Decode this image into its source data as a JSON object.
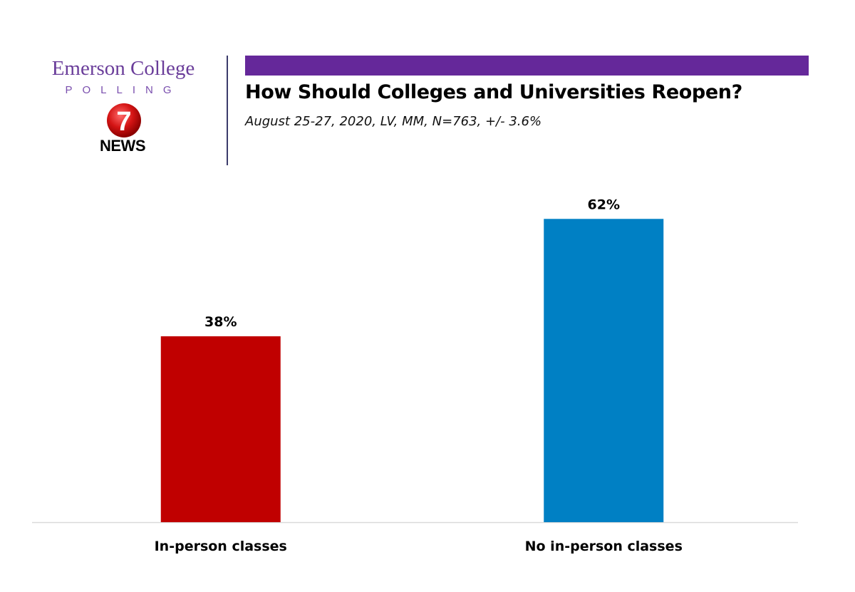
{
  "brand": {
    "college": "Emerson College",
    "polling": "POLLING",
    "news_number": "7",
    "news_word": "NEWS"
  },
  "colors": {
    "accent": "#65289a",
    "in_person": "#c00000",
    "no_in_person": "#0080c4"
  },
  "chart_data": {
    "type": "bar",
    "title": "How Should Colleges and Universities Reopen?",
    "subtitle": "August 25-27, 2020, LV, MM, N=763, +/- 3.6%",
    "categories": [
      "In-person classes",
      "No in-person classes"
    ],
    "values": [
      38,
      62
    ],
    "data_labels": [
      "38%",
      "62%"
    ],
    "bar_colors": [
      "#c00000",
      "#0080c4"
    ],
    "ylim": [
      0,
      75
    ],
    "grid": false,
    "legend": "none",
    "xlabel": "",
    "ylabel": ""
  }
}
